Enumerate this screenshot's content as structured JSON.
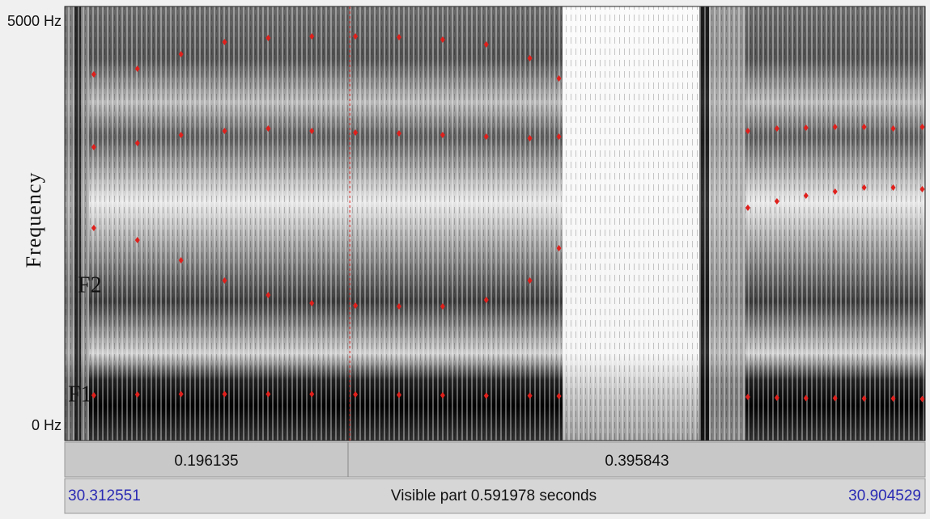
{
  "spectrogram": {
    "ylabel": "Frequency",
    "ylim": [
      0,
      5000
    ],
    "yticks": [
      {
        "value": 5000,
        "label": "5000 Hz"
      },
      {
        "value": 0,
        "label": "0 Hz"
      }
    ],
    "xlim": [
      0,
      0.591978
    ],
    "cursor": 0.196135,
    "labels": [
      "F2",
      "F1"
    ],
    "color": "#e0201c",
    "tracks": [
      {
        "x": [
          0.02,
          0.05,
          0.08,
          0.11,
          0.14,
          0.17,
          0.2,
          0.23,
          0.26,
          0.29,
          0.32,
          0.34,
          0.47,
          0.49,
          0.51,
          0.53,
          0.55,
          0.57,
          0.59
        ],
        "values": [
          380,
          390,
          395,
          395,
          395,
          395,
          390,
          385,
          380,
          375,
          375,
          370,
          360,
          350,
          345,
          345,
          340,
          340,
          335
        ]
      },
      {
        "x": [
          0.02,
          0.05,
          0.08,
          0.11,
          0.14,
          0.17,
          0.2,
          0.23,
          0.26,
          0.29,
          0.32,
          0.34,
          0.47,
          0.49,
          0.51,
          0.53,
          0.55,
          0.57,
          0.59
        ],
        "values": [
          2450,
          2300,
          2050,
          1800,
          1620,
          1520,
          1490,
          1480,
          1480,
          1560,
          1800,
          2200,
          2700,
          2780,
          2850,
          2900,
          2950,
          2950,
          2930
        ]
      },
      {
        "x": [
          0.02,
          0.05,
          0.08,
          0.11,
          0.14,
          0.17,
          0.2,
          0.23,
          0.26,
          0.29,
          0.32,
          0.34,
          0.47,
          0.49,
          0.51,
          0.53,
          0.55,
          0.57,
          0.59
        ],
        "values": [
          3450,
          3500,
          3600,
          3650,
          3680,
          3650,
          3630,
          3620,
          3600,
          3580,
          3560,
          3580,
          3650,
          3680,
          3690,
          3700,
          3700,
          3680,
          3700
        ]
      },
      {
        "x": [
          0.02,
          0.05,
          0.08,
          0.11,
          0.14,
          0.17,
          0.2,
          0.23,
          0.26,
          0.29,
          0.32,
          0.34
        ],
        "values": [
          4350,
          4420,
          4600,
          4750,
          4800,
          4820,
          4820,
          4810,
          4780,
          4720,
          4550,
          4300
        ]
      }
    ]
  },
  "selection_bar": {
    "left": 0.196135,
    "right": 0.395843
  },
  "window_bar": {
    "start": 30.312551,
    "visible": "Visible part 0.591978 seconds",
    "end": 30.904529
  }
}
